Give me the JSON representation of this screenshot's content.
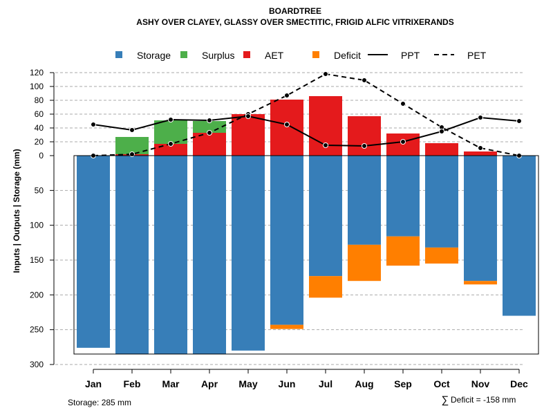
{
  "chart_data": {
    "type": "bar",
    "title": "BOARDTREE",
    "subtitle": "ASHY OVER CLAYEY, GLASSY OVER SMECTITIC, FRIGID ALFIC VITRIXERANDS",
    "ylabel": "Inputs | Outputs | Storage     (mm)",
    "categories": [
      "Jan",
      "Feb",
      "Mar",
      "Apr",
      "May",
      "Jun",
      "Jul",
      "Aug",
      "Sep",
      "Oct",
      "Nov",
      "Dec"
    ],
    "legend": [
      {
        "name": "Storage",
        "kind": "box",
        "color": "#377EB8"
      },
      {
        "name": "Surplus",
        "kind": "box",
        "color": "#4DAF4A"
      },
      {
        "name": "AET",
        "kind": "box",
        "color": "#E41A1C"
      },
      {
        "name": "Deficit",
        "kind": "box",
        "color": "#FF7F00"
      },
      {
        "name": "PPT",
        "kind": "solid"
      },
      {
        "name": "PET",
        "kind": "dashed"
      }
    ],
    "upper_ticks": [
      "0",
      "20",
      "40",
      "60",
      "80",
      "100",
      "120"
    ],
    "upper_tick_values": [
      0,
      20,
      40,
      60,
      80,
      100,
      120
    ],
    "lower_ticks": [
      "50",
      "100",
      "150",
      "200",
      "250",
      "300"
    ],
    "lower_tick_values": [
      50,
      100,
      150,
      200,
      250,
      300
    ],
    "upper_ylim": [
      0,
      120
    ],
    "lower_ylim": [
      0,
      300
    ],
    "storage_capacity": 285,
    "series": [
      {
        "name": "AET",
        "values": [
          0,
          2,
          17,
          33,
          60,
          81,
          86,
          57,
          32,
          18,
          6,
          0
        ]
      },
      {
        "name": "Surplus",
        "values": [
          0,
          25,
          34,
          17,
          0,
          0,
          0,
          0,
          0,
          0,
          0,
          0
        ]
      },
      {
        "name": "Storage",
        "values": [
          276,
          285,
          285,
          285,
          280,
          243,
          173,
          128,
          116,
          132,
          180,
          230
        ]
      },
      {
        "name": "Deficit",
        "values": [
          0,
          0,
          0,
          0,
          0,
          6,
          31,
          52,
          42,
          23,
          5,
          0
        ]
      },
      {
        "name": "PPT",
        "values": [
          45,
          37,
          52,
          51,
          57,
          45,
          15,
          14,
          20,
          35,
          55,
          50
        ]
      },
      {
        "name": "PET",
        "values": [
          0,
          2,
          17,
          33,
          60,
          87,
          118,
          109,
          75,
          41,
          11,
          0
        ]
      }
    ],
    "footer_left": "Storage: 285 mm",
    "footer_right": "Deficit = -158 mm",
    "sum_symbol": "∑"
  }
}
